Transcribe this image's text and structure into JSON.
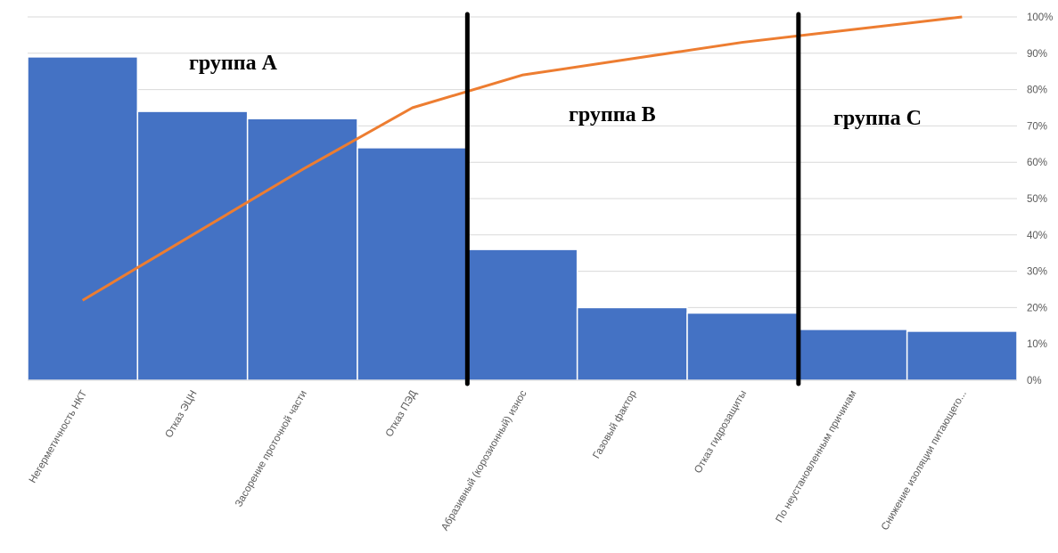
{
  "chart_data": {
    "type": "bar",
    "categories": [
      "Негерметичность НКТ",
      "Отказ ЭЦН",
      "Засорение проточной части",
      "Отказ ПЭД",
      "Абразивный (корозионный) износ",
      "Газовый фактор",
      "Отказ гидрозащиты",
      "По неустановленным причинам",
      "Снижение изоляции питающего..."
    ],
    "series": [
      {
        "type": "bar",
        "values": [
          89,
          74,
          72,
          64,
          36,
          20,
          18.5,
          14,
          13.5
        ],
        "color": "#4472C4"
      },
      {
        "type": "line",
        "axis": "secondary",
        "values": [
          22,
          40,
          58,
          75,
          84,
          88.5,
          93,
          96.5,
          100
        ],
        "color": "#ED7D31"
      }
    ],
    "y2_ticks": [
      "0%",
      "10%",
      "20%",
      "30%",
      "40%",
      "50%",
      "60%",
      "70%",
      "80%",
      "90%",
      "100%"
    ],
    "y2lim": [
      0,
      100
    ],
    "ylim": [
      0,
      100
    ],
    "grid": true,
    "annotations": {
      "group_a": "группа A",
      "group_b": "группа B",
      "group_c": "группа C"
    },
    "separator_after_categories": [
      4,
      7
    ]
  }
}
